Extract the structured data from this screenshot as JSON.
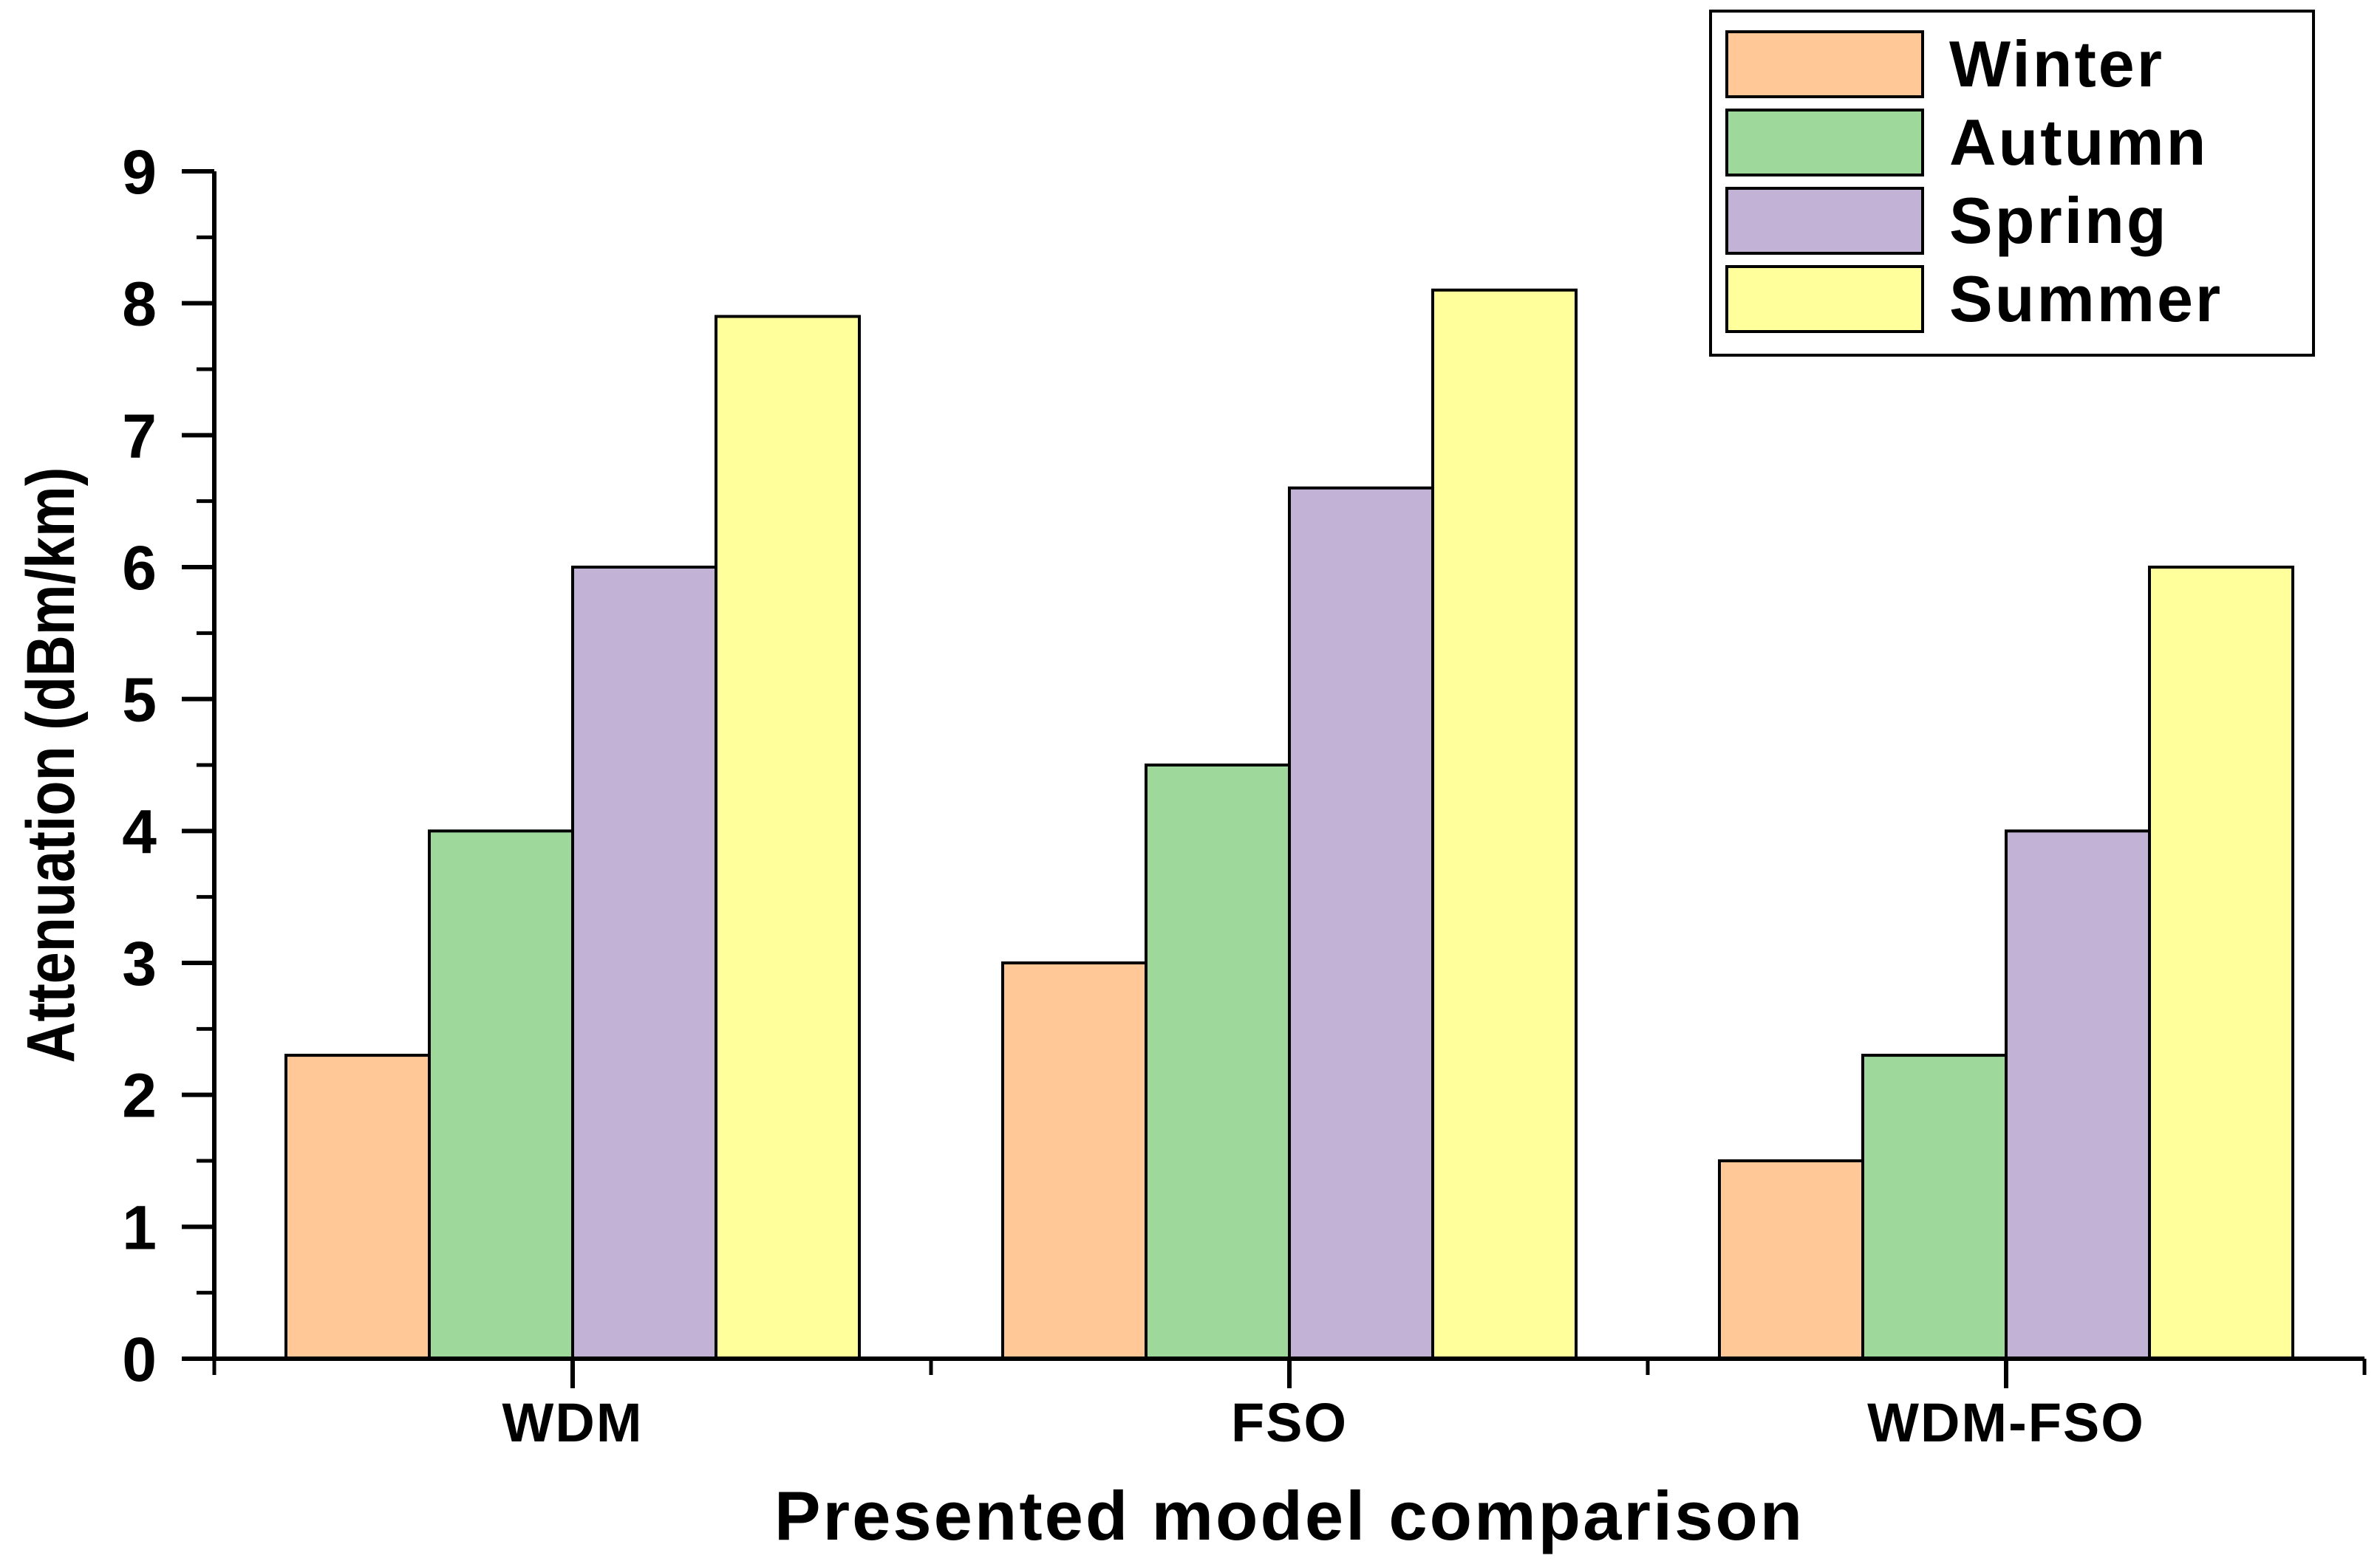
{
  "chart_data": {
    "type": "bar",
    "title": "",
    "xlabel": "Presented model comparison",
    "ylabel": "Attenuation (dBm/km)",
    "categories": [
      "WDM",
      "FSO",
      "WDM-FSO"
    ],
    "series": [
      {
        "name": "Winter",
        "color": "#ffc896",
        "values": [
          2.3,
          3.0,
          1.5
        ]
      },
      {
        "name": "Autumn",
        "color": "#9ed99b",
        "values": [
          4.0,
          4.5,
          2.3
        ]
      },
      {
        "name": "Spring",
        "color": "#c2b2d6",
        "values": [
          6.0,
          6.6,
          4.0
        ]
      },
      {
        "name": "Summer",
        "color": "#ffff9b",
        "values": [
          7.9,
          8.1,
          6.0
        ]
      }
    ],
    "ylim": [
      0,
      9
    ],
    "yticks": [
      "0",
      "1",
      "2",
      "3",
      "4",
      "5",
      "6",
      "7",
      "8",
      "9"
    ],
    "grid": false,
    "legend_position": "top-right"
  }
}
